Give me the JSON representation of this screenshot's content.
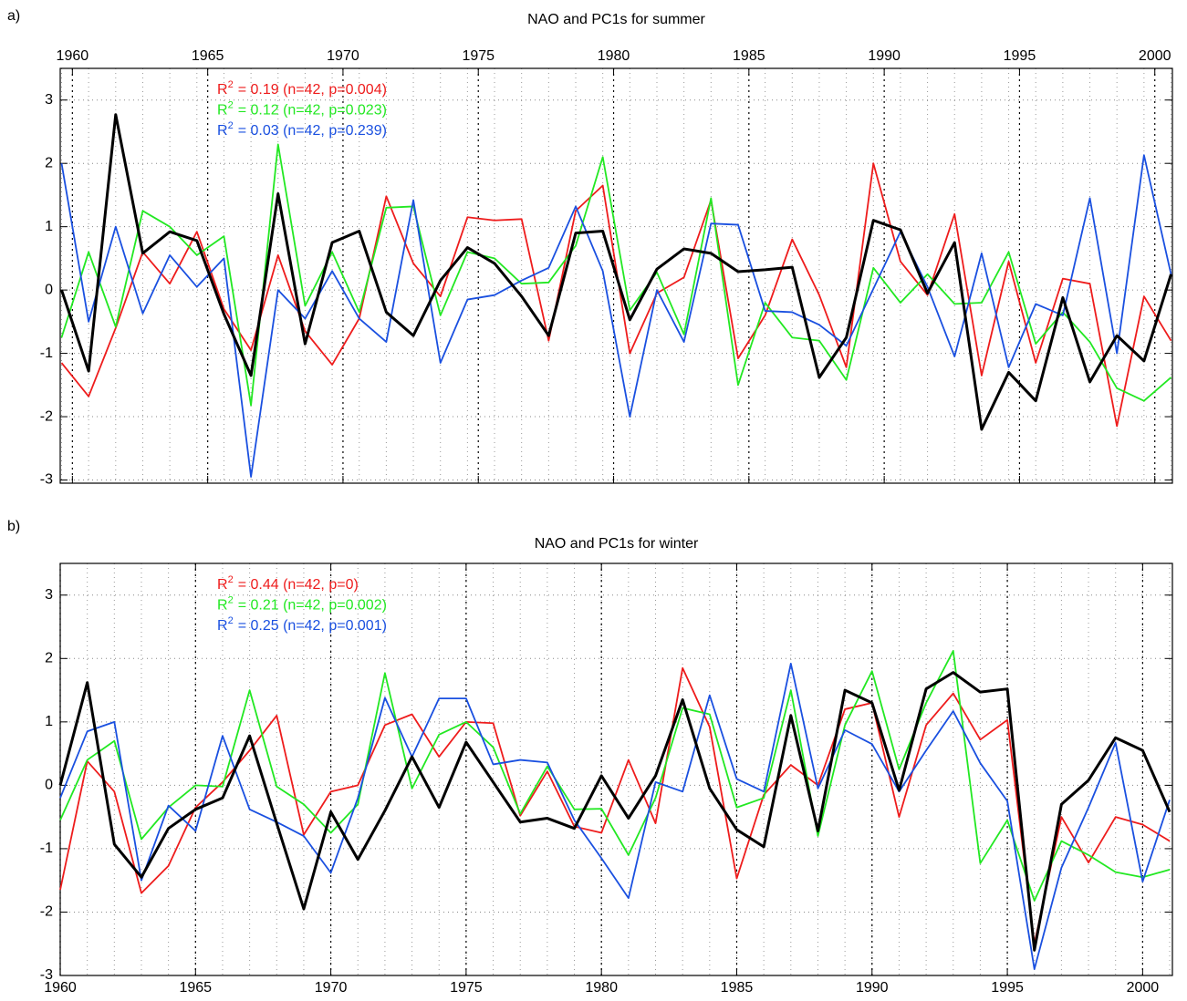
{
  "chart_data": [
    {
      "type": "line",
      "panel": "a)",
      "title": "NAO and PC1s for summer",
      "xaxis_position": "top",
      "x": [
        1959.6,
        1960.6,
        1961.6,
        1962.6,
        1963.6,
        1964.6,
        1965.6,
        1966.6,
        1967.6,
        1968.6,
        1969.6,
        1970.6,
        1971.6,
        1972.6,
        1973.6,
        1974.6,
        1975.6,
        1976.6,
        1977.6,
        1978.6,
        1979.6,
        1980.6,
        1981.6,
        1982.6,
        1983.6,
        1984.6,
        1985.6,
        1986.6,
        1987.6,
        1988.6,
        1989.6,
        1990.6,
        1991.6,
        1992.6,
        1993.6,
        1994.6,
        1995.6,
        1996.6,
        1997.6,
        1998.6,
        1999.6,
        2000.6
      ],
      "xlim": [
        1959.55,
        2000.65
      ],
      "xticks": [
        1960,
        1965,
        1970,
        1975,
        1980,
        1985,
        1990,
        1995,
        2000
      ],
      "ylim": [
        -3.05,
        3.5
      ],
      "yticks": [
        -3,
        -2,
        -1,
        0,
        1,
        2,
        3
      ],
      "grid": true,
      "annotations": [
        {
          "base": "R",
          "sup": "2",
          "text": "= 0.19 (n=42, p=0.004)",
          "color": "#ee1c1c"
        },
        {
          "base": "R",
          "sup": "2",
          "text": "= 0.12 (n=42, p=0.023)",
          "color": "#22e822"
        },
        {
          "base": "R",
          "sup": "2",
          "text": "= 0.03 (n=42, p=0.239)",
          "color": "#1a50e0"
        }
      ],
      "series": [
        {
          "color": "#ee1c1c",
          "width": 1.8,
          "values": [
            -1.15,
            -1.68,
            -0.6,
            0.6,
            0.1,
            0.92,
            -0.3,
            -0.95,
            0.55,
            -0.65,
            -1.18,
            -0.45,
            1.48,
            0.42,
            -0.1,
            1.15,
            1.1,
            1.12,
            -0.8,
            1.25,
            1.65,
            -1.0,
            -0.05,
            0.2,
            1.42,
            -1.08,
            -0.4,
            0.8,
            -0.08,
            -1.22,
            2.0,
            0.45,
            -0.08,
            1.2,
            -1.35,
            0.45,
            -1.15,
            0.18,
            0.1,
            -2.15,
            -0.1,
            -0.8
          ]
        },
        {
          "color": "#22e822",
          "width": 1.8,
          "values": [
            -0.75,
            0.6,
            -0.58,
            1.25,
            1.0,
            0.55,
            0.85,
            -1.82,
            2.3,
            -0.25,
            0.6,
            -0.35,
            1.3,
            1.32,
            -0.4,
            0.6,
            0.5,
            0.1,
            0.12,
            0.7,
            2.1,
            -0.32,
            0.28,
            -0.7,
            1.45,
            -1.5,
            -0.2,
            -0.75,
            -0.8,
            -1.42,
            0.35,
            -0.2,
            0.25,
            -0.22,
            -0.2,
            0.6,
            -0.85,
            -0.35,
            -0.82,
            -1.55,
            -1.75,
            -1.38
          ]
        },
        {
          "color": "#1a50e0",
          "width": 1.8,
          "values": [
            2.0,
            -0.5,
            1.0,
            -0.37,
            0.55,
            0.05,
            0.5,
            -2.95,
            0.0,
            -0.45,
            0.3,
            -0.45,
            -0.82,
            1.42,
            -1.15,
            -0.15,
            -0.08,
            0.15,
            0.35,
            1.32,
            0.3,
            -2.0,
            0.0,
            -0.82,
            1.05,
            1.03,
            -0.33,
            -0.35,
            -0.55,
            -0.88,
            0.02,
            0.92,
            0.05,
            -1.05,
            0.58,
            -1.22,
            -0.22,
            -0.4,
            1.45,
            -1.0,
            2.13,
            0.25
          ]
        },
        {
          "color": "#000000",
          "width": 3,
          "values": [
            0.0,
            -1.28,
            2.77,
            0.58,
            0.92,
            0.78,
            -0.38,
            -1.35,
            1.52,
            -0.85,
            0.75,
            0.93,
            -0.35,
            -0.72,
            0.15,
            0.67,
            0.42,
            -0.1,
            -0.72,
            0.9,
            0.93,
            -0.47,
            0.33,
            0.65,
            0.58,
            0.29,
            0.32,
            0.36,
            -1.38,
            -0.75,
            1.1,
            0.95,
            -0.05,
            0.75,
            -2.2,
            -1.3,
            -1.75,
            -0.12,
            -1.45,
            -0.72,
            -1.12,
            0.25
          ]
        }
      ]
    },
    {
      "type": "line",
      "panel": "b)",
      "title": "NAO and PC1s for winter",
      "xaxis_position": "bottom",
      "x": [
        1960,
        1961,
        1962,
        1963,
        1964,
        1965,
        1966,
        1967,
        1968,
        1969,
        1970,
        1971,
        1972,
        1973,
        1974,
        1975,
        1976,
        1977,
        1978,
        1979,
        1980,
        1981,
        1982,
        1983,
        1984,
        1985,
        1986,
        1987,
        1988,
        1989,
        1990,
        1991,
        1992,
        1993,
        1994,
        1995,
        1996,
        1997,
        1998,
        1999,
        2000,
        2001
      ],
      "xlim": [
        1960,
        2001.1
      ],
      "xticks": [
        1960,
        1965,
        1970,
        1975,
        1980,
        1985,
        1990,
        1995,
        2000
      ],
      "ylim": [
        -3,
        3.5
      ],
      "yticks": [
        -3,
        -2,
        -1,
        0,
        1,
        2,
        3
      ],
      "grid": true,
      "annotations": [
        {
          "base": "R",
          "sup": "2",
          "text": "= 0.44 (n=42, p=0)",
          "color": "#ee1c1c"
        },
        {
          "base": "R",
          "sup": "2",
          "text": "= 0.21 (n=42, p=0.002)",
          "color": "#22e822"
        },
        {
          "base": "R",
          "sup": "2",
          "text": "= 0.25 (n=42, p=0.001)",
          "color": "#1a50e0"
        }
      ],
      "series": [
        {
          "color": "#ee1c1c",
          "width": 1.8,
          "values": [
            -1.65,
            0.38,
            -0.1,
            -1.7,
            -1.27,
            -0.35,
            0.05,
            0.55,
            1.1,
            -0.78,
            -0.1,
            0.0,
            0.95,
            1.12,
            0.45,
            1.0,
            0.98,
            -0.48,
            0.22,
            -0.65,
            -0.75,
            0.4,
            -0.6,
            1.85,
            0.92,
            -1.47,
            -0.15,
            0.32,
            0.0,
            1.2,
            1.3,
            -0.5,
            0.95,
            1.45,
            0.72,
            1.03,
            -2.5,
            -0.5,
            -1.22,
            -0.5,
            -0.62,
            -0.88
          ]
        },
        {
          "color": "#22e822",
          "width": 1.8,
          "values": [
            -0.55,
            0.4,
            0.7,
            -0.85,
            -0.35,
            0.0,
            -0.02,
            1.5,
            -0.02,
            -0.3,
            -0.75,
            -0.3,
            1.77,
            -0.05,
            0.8,
            1.0,
            0.6,
            -0.45,
            0.3,
            -0.38,
            -0.37,
            -1.1,
            -0.2,
            1.22,
            1.12,
            -0.35,
            -0.2,
            1.5,
            -0.8,
            0.95,
            1.8,
            0.25,
            1.3,
            2.12,
            -1.23,
            -0.55,
            -1.82,
            -0.88,
            -1.1,
            -1.37,
            -1.45,
            -1.33
          ]
        },
        {
          "color": "#1a50e0",
          "width": 1.8,
          "values": [
            -0.2,
            0.85,
            1.0,
            -1.5,
            -0.32,
            -0.72,
            0.78,
            -0.38,
            -0.58,
            -0.8,
            -1.38,
            -0.2,
            1.38,
            0.45,
            1.37,
            1.37,
            0.33,
            0.4,
            0.36,
            -0.55,
            -1.15,
            -1.78,
            0.05,
            -0.1,
            1.42,
            0.1,
            -0.1,
            1.92,
            -0.05,
            0.87,
            0.65,
            -0.1,
            0.55,
            1.17,
            0.35,
            -0.25,
            -2.9,
            -1.3,
            -0.35,
            0.67,
            -1.52,
            -0.23
          ]
        },
        {
          "color": "#000000",
          "width": 3,
          "values": [
            0.0,
            1.62,
            -0.93,
            -1.45,
            -0.68,
            -0.38,
            -0.2,
            0.78,
            -0.6,
            -1.95,
            -0.42,
            -1.17,
            -0.4,
            0.45,
            -0.35,
            0.68,
            0.05,
            -0.58,
            -0.52,
            -0.68,
            0.15,
            -0.52,
            0.15,
            1.35,
            -0.05,
            -0.7,
            -0.97,
            1.1,
            -0.72,
            1.5,
            1.3,
            -0.08,
            1.52,
            1.78,
            1.47,
            1.52,
            -2.6,
            -0.3,
            0.08,
            0.75,
            0.55,
            -0.42
          ]
        }
      ]
    }
  ]
}
